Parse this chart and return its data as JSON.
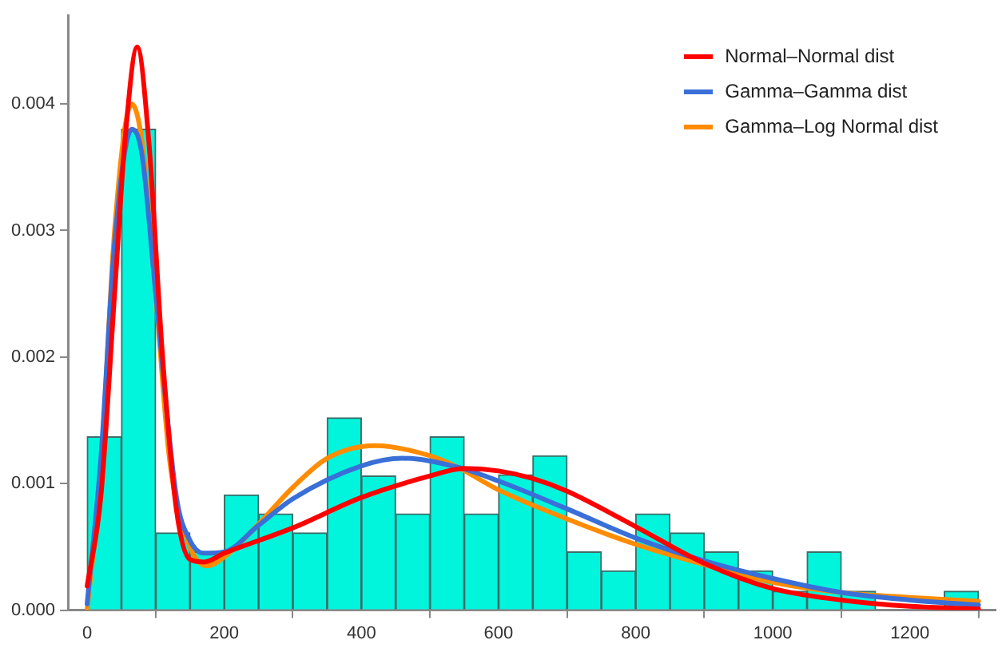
{
  "chart_data": {
    "type": "histogram",
    "color": "#00f5dc",
    "bins": [
      0,
      50,
      100,
      150,
      200,
      250,
      300,
      350,
      400,
      450,
      500,
      550,
      600,
      650,
      700,
      750,
      800,
      850,
      900,
      950,
      1000,
      1050,
      1100,
      1150,
      1200,
      1250,
      1300
    ],
    "values": [
      0.00137,
      0.0038,
      0.00061,
      0.00046,
      0.00091,
      0.00076,
      0.00061,
      0.00152,
      0.00106,
      0.00076,
      0.00137,
      0.00076,
      0.00107,
      0.00122,
      0.00046,
      0.00031,
      0.00076,
      0.00061,
      0.00046,
      0.00031,
      0.00015,
      0.00046,
      0.00015,
      0,
      0,
      0.00015
    ],
    "series": [
      {
        "name": "Normal–Normal dist",
        "type": "line",
        "color": "#ff0000",
        "x": [
          0,
          20,
          40,
          55,
          73,
          90,
          110,
          130,
          150,
          170,
          200,
          300,
          400,
          500,
          550,
          600,
          650,
          700,
          800,
          900,
          1000,
          1100,
          1200,
          1300
        ],
        "values": [
          0.00019,
          0.0009,
          0.0025,
          0.0037,
          0.00445,
          0.0037,
          0.002,
          0.0008,
          0.0004,
          0.00038,
          0.00045,
          0.00065,
          0.00089,
          0.00106,
          0.00112,
          0.0011,
          0.00104,
          0.00094,
          0.00066,
          0.00037,
          0.00017,
          8e-05,
          3e-05,
          1e-05
        ]
      },
      {
        "name": "Gamma–Gamma dist",
        "type": "line",
        "color": "#3a6fd8",
        "x": [
          0,
          20,
          40,
          65,
          80,
          100,
          130,
          150,
          170,
          200,
          250,
          300,
          400,
          460,
          540,
          600,
          700,
          800,
          900,
          1000,
          1100,
          1200,
          1300
        ],
        "values": [
          5e-05,
          0.0012,
          0.0029,
          0.0038,
          0.0036,
          0.0025,
          0.0009,
          0.00055,
          0.00045,
          0.00046,
          0.00067,
          0.00088,
          0.00114,
          0.0012,
          0.00113,
          0.00102,
          0.0008,
          0.00057,
          0.00039,
          0.00025,
          0.00014,
          8e-05,
          4e-05
        ]
      },
      {
        "name": "Gamma–Log Normal dist",
        "type": "line",
        "color": "#ff8c00",
        "x": [
          0,
          20,
          40,
          65,
          80,
          100,
          120,
          150,
          175,
          200,
          250,
          300,
          350,
          420,
          500,
          540,
          600,
          700,
          800,
          900,
          1000,
          1100,
          1200,
          1300
        ],
        "values": [
          0,
          0.0011,
          0.003,
          0.004,
          0.0037,
          0.0025,
          0.0012,
          0.0005,
          0.00035,
          0.00042,
          0.00068,
          0.00097,
          0.0012,
          0.0013,
          0.00122,
          0.00113,
          0.00095,
          0.00072,
          0.00052,
          0.00036,
          0.00022,
          0.00014,
          0.0001,
          7e-05
        ]
      }
    ],
    "xlim": [
      -28,
      1325
    ],
    "xticks": [
      0,
      200,
      400,
      600,
      800,
      1000,
      1200
    ],
    "ylim": [
      0,
      0.0047
    ],
    "yticks": [
      {
        "value": 0,
        "label": "0.000"
      },
      0.001,
      0.002,
      0.003,
      0.004
    ],
    "legend": "top right",
    "grid": false
  }
}
